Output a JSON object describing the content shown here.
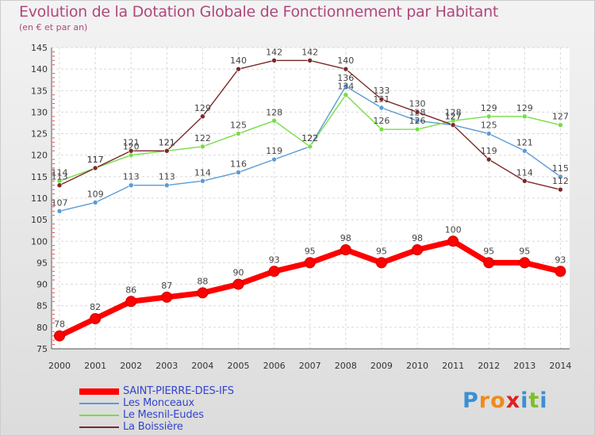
{
  "chart_data": {
    "type": "line",
    "title": "Evolution de la Dotation Globale de Fonctionnement par Habitant",
    "subtitle": "(en € et par an)",
    "xlabel": "",
    "ylabel": "",
    "ylim": [
      75,
      145
    ],
    "yticks": [
      75,
      80,
      85,
      90,
      95,
      100,
      105,
      110,
      115,
      120,
      125,
      130,
      135,
      140,
      145
    ],
    "x": [
      "2000",
      "2001",
      "2002",
      "2003",
      "2004",
      "2005",
      "2006",
      "2007",
      "2008",
      "2009",
      "2010",
      "2011",
      "2012",
      "2013",
      "2014"
    ],
    "grid": true,
    "legend_position": "bottom-left",
    "series": [
      {
        "name": "SAINT-PIERRE-DES-IFS",
        "color": "#ff0000",
        "values": [
          78,
          82,
          86,
          87,
          88,
          90,
          93,
          95,
          98,
          95,
          98,
          100,
          95,
          95,
          93
        ]
      },
      {
        "name": "Les Monceaux",
        "color": "#5b9bd5",
        "values": [
          107,
          109,
          113,
          113,
          114,
          116,
          119,
          122,
          136,
          131,
          128,
          127,
          125,
          121,
          115
        ]
      },
      {
        "name": "Le Mesnil-Eudes",
        "color": "#77dd44",
        "values": [
          114,
          117,
          120,
          121,
          122,
          125,
          128,
          122,
          134,
          126,
          126,
          128,
          129,
          129,
          127
        ]
      },
      {
        "name": "La Boissière",
        "color": "#7a2a2a",
        "values": [
          113,
          117,
          121,
          121,
          129,
          140,
          142,
          142,
          140,
          133,
          130,
          127,
          119,
          114,
          112
        ]
      }
    ]
  },
  "logo": {
    "letters": [
      "P",
      "r",
      "o",
      "x",
      "i",
      "t",
      "i"
    ],
    "colors": [
      "#3a8fd6",
      "#f08a1c",
      "#f08a1c",
      "#e02020",
      "#3a8fd6",
      "#7bbf2a",
      "#3a8fd6"
    ]
  }
}
